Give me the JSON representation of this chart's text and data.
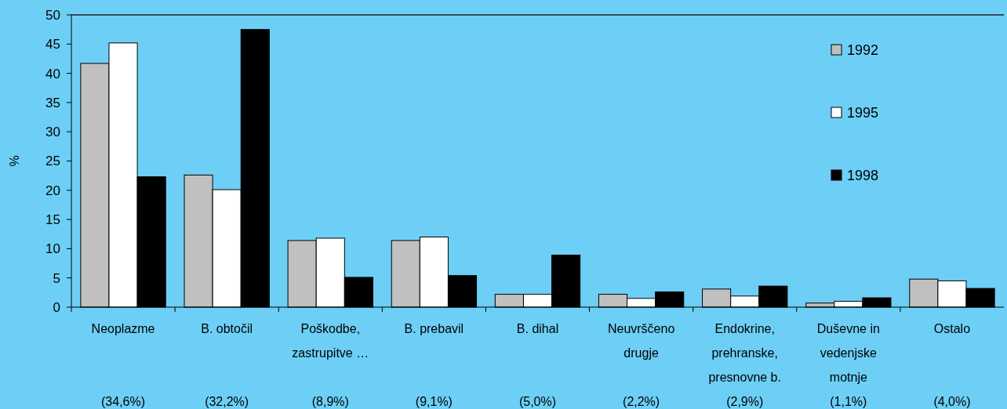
{
  "chart_data": {
    "type": "bar",
    "ylabel": "%",
    "categories": [
      "Neoplazme\n\n\n(34,6%)",
      "B. obtočil\n\n\n(32,2%)",
      "Poškodbe,\nzastrupitve …\n\n(8,9%)",
      "B. prebavil\n\n\n(9,1%)",
      "B. dihal\n\n\n(5,0%)",
      "Neuvrščeno\ndrugje\n\n(2,2%)",
      "Endokrine,\nprehranske,\npresnovne b.\n(2,9%)",
      "Duševne in\nvedenjske\nmotnje\n(1,1%)",
      "Ostalo\n\n\n(4,0%)"
    ],
    "series": [
      {
        "name": "1992",
        "color": "#c0c0c0",
        "values": [
          41.7,
          22.6,
          11.4,
          11.4,
          2.2,
          2.2,
          3.1,
          0.7,
          4.8
        ]
      },
      {
        "name": "1995",
        "color": "#ffffff",
        "values": [
          45.2,
          20.1,
          11.8,
          12.0,
          2.2,
          1.5,
          1.9,
          1.0,
          4.5
        ]
      },
      {
        "name": "1998",
        "color": "#000000",
        "values": [
          22.3,
          47.5,
          5.1,
          5.4,
          8.9,
          2.6,
          3.6,
          1.6,
          3.2
        ]
      }
    ],
    "ylim": [
      0,
      50
    ],
    "yticks": [
      0,
      5,
      10,
      15,
      20,
      25,
      30,
      35,
      40,
      45,
      50
    ],
    "grid": false,
    "legend": "right"
  }
}
